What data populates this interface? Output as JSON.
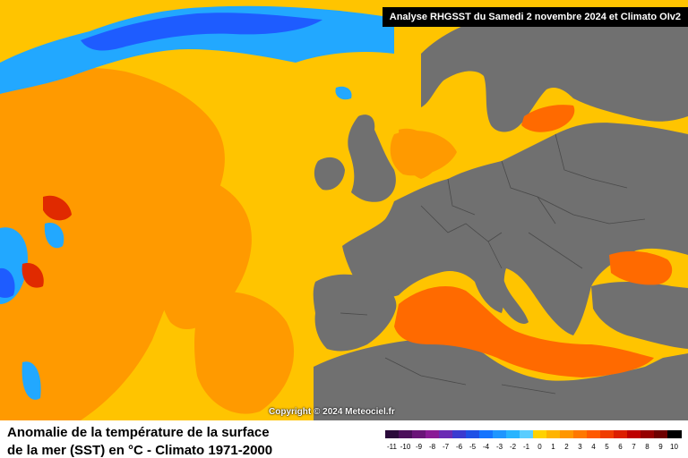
{
  "header": {
    "title": "Analyse RHGSST  du Samedi 2 novembre 2024 et Climato OIv2"
  },
  "copyright": "Copyright © 2024 Meteociel.fr",
  "footer": {
    "title_line1": "Anomalie de la température de la surface",
    "title_line2": "de la mer (SST) en °C - Climato 1971-2000"
  },
  "legend": {
    "labels": [
      "-11",
      "-10",
      "-9",
      "-8",
      "-7",
      "-6",
      "-5",
      "-4",
      "-3",
      "-2",
      "-1",
      "0",
      "1",
      "2",
      "3",
      "4",
      "5",
      "6",
      "7",
      "8",
      "9",
      "10"
    ],
    "colors": [
      "#2a0a3a",
      "#4b0f5a",
      "#6a1478",
      "#8a1a96",
      "#6a2ab4",
      "#3a3ad0",
      "#1e50e6",
      "#1474ff",
      "#1e96ff",
      "#28b4ff",
      "#5acdff",
      "#ffd200",
      "#ffb400",
      "#ff9600",
      "#ff7800",
      "#ff5a00",
      "#f03c00",
      "#dc1e00",
      "#be0000",
      "#960000",
      "#6e0000",
      "#000000"
    ]
  },
  "map_colors": {
    "ocean": "#ffc400",
    "warm": "#ff9a00",
    "hot": "#ff6a00",
    "cool": "#22a8ff",
    "cold": "#1e5cff",
    "land": "#707070",
    "borders": "#4a4a4a"
  }
}
